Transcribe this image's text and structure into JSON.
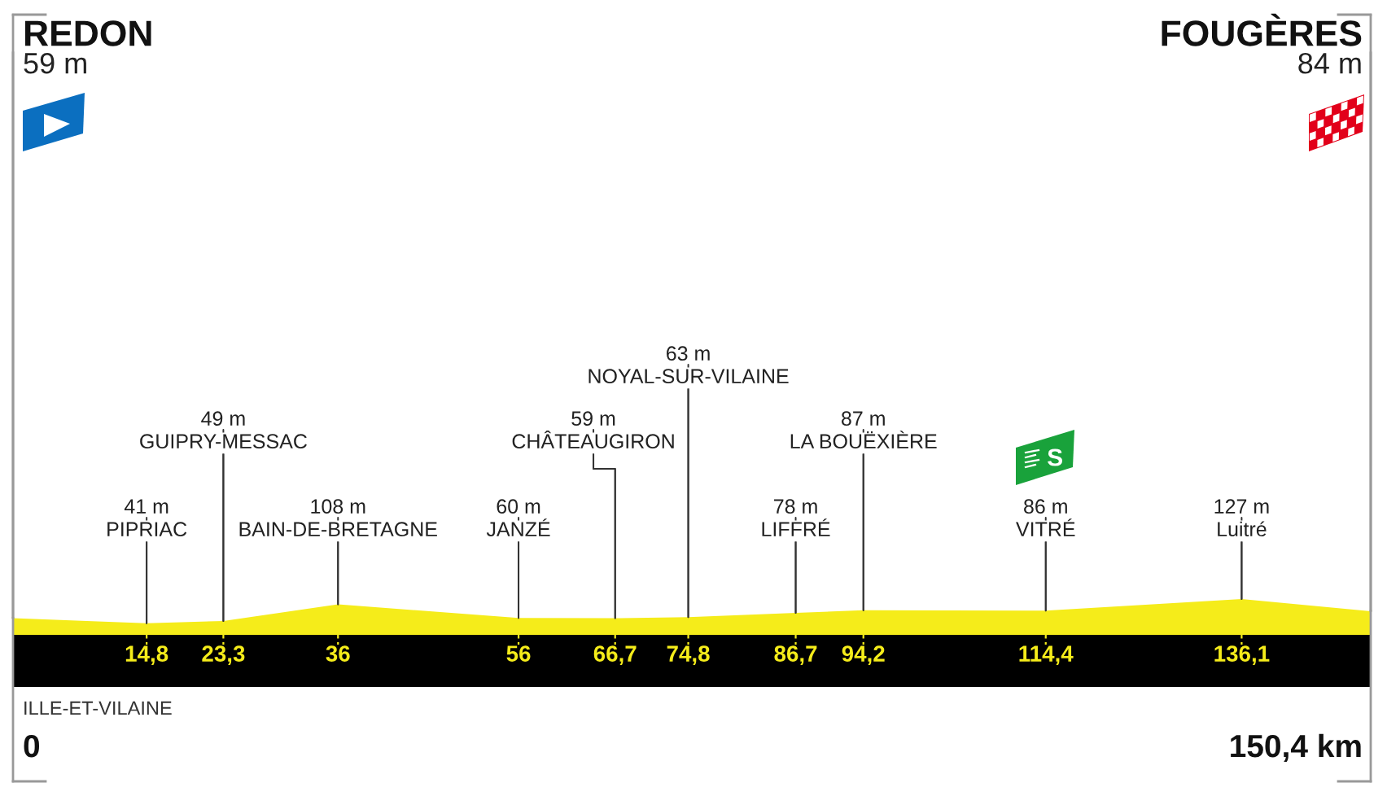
{
  "chart_data": {
    "type": "area",
    "x": [
      0,
      14.8,
      23.3,
      36,
      56,
      66.7,
      74.8,
      86.7,
      94.2,
      114.4,
      136.1,
      150.4
    ],
    "values": [
      59,
      41,
      49,
      108,
      60,
      59,
      63,
      78,
      87,
      86,
      127,
      84
    ],
    "value_labels": [
      "59 m",
      "41 m",
      "49 m",
      "108 m",
      "60 m",
      "59 m",
      "63 m",
      "78 m",
      "87 m",
      "86 m",
      "127 m",
      "84 m"
    ],
    "color": "#f5ec1a",
    "xlim": [
      0,
      150.4
    ],
    "xticks": [
      {
        "value": 14.8,
        "label": "14,8"
      },
      {
        "value": 23.3,
        "label": "23,3"
      },
      36,
      56,
      {
        "value": 66.7,
        "label": "66,7"
      },
      {
        "value": 74.8,
        "label": "74,8"
      },
      {
        "value": 86.7,
        "label": "86,7"
      },
      {
        "value": 94.2,
        "label": "94,2"
      },
      {
        "value": 114.4,
        "label": "114,4"
      },
      {
        "value": 136.1,
        "label": "136,1"
      }
    ],
    "tick_labels": "x",
    "annotations": [
      {
        "text": "REDON",
        "x": 0,
        "y": 59
      },
      {
        "text": "PIPRIAC",
        "x": 14.8,
        "y": 41
      },
      {
        "text": "GUIPRY-MESSAC",
        "x": 23.3,
        "y": 49
      },
      {
        "text": "BAIN-DE-BRETAGNE",
        "x": 36,
        "y": 108
      },
      {
        "text": "JANZÉ",
        "x": 56,
        "y": 60
      },
      {
        "text": "CHÂTEAUGIRON",
        "x": 66.7,
        "y": 59
      },
      {
        "text": "NOYAL-SUR-VILAINE",
        "x": 74.8,
        "y": 63
      },
      {
        "text": "LIFFRÉ",
        "x": 86.7,
        "y": 78
      },
      {
        "text": "LA BOUËXIÈRE",
        "x": 94.2,
        "y": 87
      },
      {
        "text": "VITRÉ",
        "x": 114.4,
        "y": 86
      },
      {
        "text": "Luitré",
        "x": 136.1,
        "y": 127
      },
      {
        "text": "FOUGÈRES",
        "x": 150.4,
        "y": 84
      },
      "ILLE-ET-VILAINE",
      "0",
      "150,4 km"
    ]
  }
}
